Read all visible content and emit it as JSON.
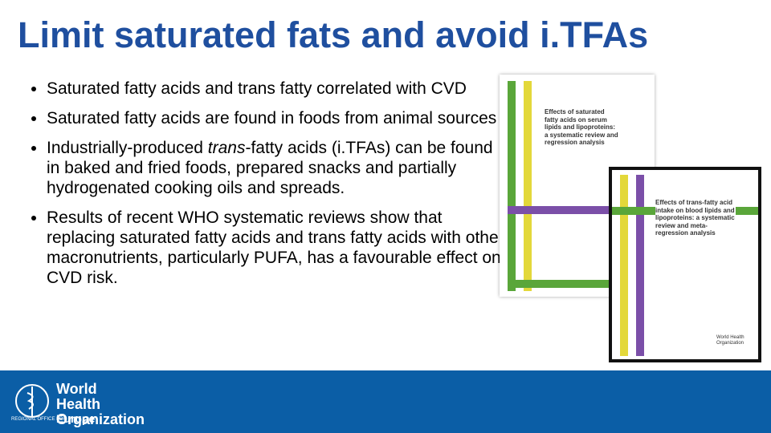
{
  "header": {
    "title": "Limit saturated fats and avoid i.TFAs"
  },
  "bullets": [
    [
      "Saturated fatty acids and trans fatty correlated with CVD"
    ],
    [
      "Saturated fatty acids are found in foods from animal sources"
    ],
    [
      "Industrially-produced ",
      "trans",
      "-fatty acids (i.TFAs) can be found in baked and fried foods, prepared snacks and partially hydrogenated cooking oils and spreads."
    ],
    [
      "Results of recent WHO systematic reviews show that replacing saturated fatty acids and trans fatty acids with other macronutrients, particularly PUFA, has a favourable effect on CVD risk."
    ]
  ],
  "covers": [
    {
      "title": "Effects of saturated fatty acids on serum lipids and lipoproteins: a systematic review and regression analysis"
    },
    {
      "title": "Effects of trans-fatty acid intake on blood lipids and lipoproteins: a systematic review and meta-regression analysis",
      "publisher": "World Health Organization"
    }
  ],
  "footer": {
    "org": "World Health Organization",
    "office": "REGIONAL OFFICE FOR",
    "region": "Europe"
  }
}
